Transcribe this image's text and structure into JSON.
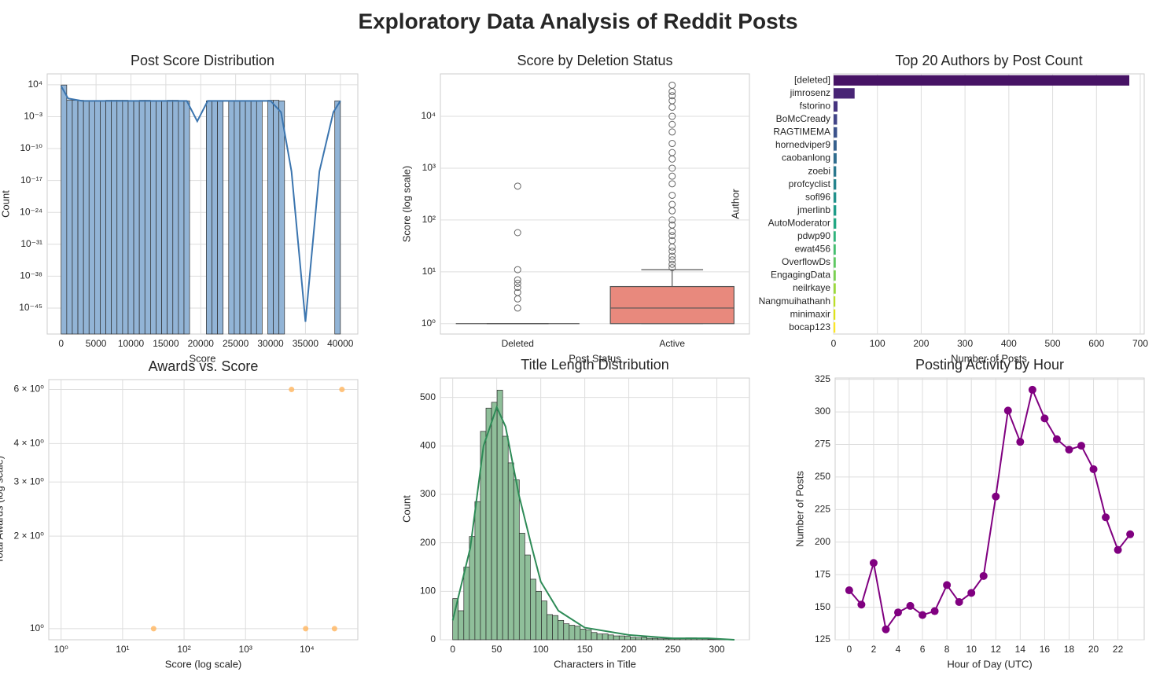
{
  "title": "Exploratory Data Analysis of Reddit Posts",
  "chart_data": [
    {
      "type": "histogram",
      "title": "Post Score Distribution",
      "xlabel": "Score",
      "ylabel": "Count",
      "ylog": true,
      "grid": true,
      "color": "#92b4d6",
      "edgecolor": "#2b2b2b",
      "bins": [
        0,
        800,
        1600,
        2400,
        3200,
        4000,
        4800,
        5600,
        6400,
        7200,
        8000,
        8800,
        9600,
        10400,
        11200,
        12000,
        12800,
        13600,
        14400,
        15200,
        16000,
        16800,
        17600,
        18400,
        19200,
        20000,
        20800,
        21600,
        22400,
        23200,
        24000,
        24800,
        25600,
        26400,
        27200,
        28000,
        28800,
        29600,
        30400,
        31200,
        32000,
        32800,
        33600,
        34400,
        35200,
        36000,
        36800,
        37600,
        38400,
        39200,
        40000
      ],
      "counts": [
        9000,
        4,
        4,
        4,
        3,
        3,
        3,
        3,
        4,
        4,
        4,
        4,
        3,
        3,
        4,
        4,
        3,
        3,
        3,
        4,
        4,
        3,
        3,
        0,
        0,
        0,
        3,
        3,
        3,
        0,
        3,
        3,
        3,
        3,
        3,
        3,
        0,
        4,
        4,
        3,
        0,
        0,
        0,
        0,
        0,
        0,
        0,
        0,
        0,
        3
      ],
      "kde": {
        "color": "#3b75af",
        "x": [
          0,
          1000,
          3000,
          6000,
          10000,
          15000,
          18000,
          19500,
          21000,
          25000,
          30000,
          31500,
          33000,
          35000,
          37000,
          39000,
          40000
        ],
        "y": [
          5000,
          10,
          3,
          3,
          3,
          3,
          3,
          0.0001,
          3,
          3,
          3,
          0.01,
          1e-15,
          1e-48,
          1e-15,
          0.01,
          3
        ]
      },
      "xlim": [
        -2000,
        42500
      ],
      "xticks": [
        0,
        5000,
        10000,
        15000,
        20000,
        25000,
        30000,
        35000,
        40000
      ],
      "ylim": [
        2e-51,
        2500000.0
      ],
      "yticks": [
        {
          "value": 10000.0,
          "label": "10⁴"
        },
        {
          "value": 0.001,
          "label": "10⁻³"
        },
        {
          "value": 1e-10,
          "label": "10⁻¹⁰"
        },
        {
          "value": 1e-17,
          "label": "10⁻¹⁷"
        },
        {
          "value": 1e-24,
          "label": "10⁻²⁴"
        },
        {
          "value": 1e-31,
          "label": "10⁻³¹"
        },
        {
          "value": 1e-38,
          "label": "10⁻³⁸"
        },
        {
          "value": 1e-45,
          "label": "10⁻⁴⁵"
        }
      ]
    },
    {
      "type": "box",
      "title": "Score by Deletion Status",
      "xlabel": "Post Status",
      "ylabel": "Score (log scale)",
      "ylog": true,
      "grid": true,
      "categories": [
        "Deleted",
        "Active"
      ],
      "boxes": [
        {
          "color": "#8db8d8",
          "whisker_low": 1,
          "q1": 1,
          "median": 1,
          "q3": 1,
          "whisker_high": 1,
          "outliers": [
            2,
            3,
            4,
            5,
            6,
            7,
            11,
            57,
            450
          ]
        },
        {
          "color": "#e8897d",
          "whisker_low": 1,
          "q1": 1,
          "median": 2,
          "q3": 5.2,
          "whisker_high": 11,
          "outliers": [
            12,
            14,
            17,
            20,
            25,
            30,
            40,
            50,
            60,
            80,
            100,
            150,
            200,
            300,
            500,
            700,
            1000,
            1500,
            2000,
            3000,
            5000,
            7000,
            10000,
            15000,
            20000,
            25000,
            30000,
            40000
          ]
        }
      ],
      "ylim": [
        0.63,
        66000
      ],
      "yticks": [
        {
          "value": 1,
          "label": "10⁰"
        },
        {
          "value": 10,
          "label": "10¹"
        },
        {
          "value": 100,
          "label": "10²"
        },
        {
          "value": 1000,
          "label": "10³"
        },
        {
          "value": 10000,
          "label": "10⁴"
        }
      ]
    },
    {
      "type": "bar",
      "orientation": "horizontal",
      "title": "Top 20 Authors by Post Count",
      "xlabel": "Number of Posts",
      "ylabel": "Author",
      "grid": true,
      "categories": [
        "[deleted]",
        "jimrosenz",
        "fstorino",
        "BoMcCready",
        "RAGTIMEMA",
        "hornedviper9",
        "caobanlong",
        "zoebi",
        "profcyclist",
        "sofl96",
        "jmerlinb",
        "AutoModerator",
        "pdwp90",
        "ewat456",
        "OverflowDs",
        "EngagingData",
        "neilrkaye",
        "Nangmuihathanh",
        "minimaxir",
        "bocap123"
      ],
      "values": [
        675,
        48,
        9,
        8,
        8,
        7,
        7,
        6,
        6,
        6,
        6,
        6,
        5,
        5,
        5,
        5,
        5,
        4,
        4,
        4
      ],
      "colors": [
        "#471365",
        "#482475",
        "#463480",
        "#414487",
        "#3b528b",
        "#355f8d",
        "#2f6c8e",
        "#2a788e",
        "#25848e",
        "#21918c",
        "#1e9c89",
        "#22a884",
        "#2fb47c",
        "#44bf70",
        "#5ec962",
        "#7ad151",
        "#9bd93c",
        "#bddf26",
        "#dfe318",
        "#fde725"
      ],
      "xlim": [
        0,
        709
      ],
      "xticks": [
        0,
        100,
        200,
        300,
        400,
        500,
        600,
        700
      ]
    },
    {
      "type": "scatter",
      "title": "Awards vs. Score",
      "xlabel": "Score (log scale)",
      "ylabel": "Total Awards (log scale)",
      "xlog": true,
      "ylog": true,
      "grid": true,
      "color": "#ffb866",
      "x": [
        32,
        9500,
        28000,
        5600,
        37000
      ],
      "values": [
        1,
        1,
        1,
        6,
        6
      ],
      "xlim": [
        0.63,
        67000
      ],
      "ylim": [
        0.92,
        6.46
      ],
      "xticks": [
        {
          "value": 1,
          "label": "10⁰"
        },
        {
          "value": 10,
          "label": "10¹"
        },
        {
          "value": 100,
          "label": "10²"
        },
        {
          "value": 1000,
          "label": "10³"
        },
        {
          "value": 10000,
          "label": "10⁴"
        }
      ],
      "yticks": [
        {
          "value": 1,
          "label": "10⁰"
        },
        {
          "value": 2,
          "label": "2 × 10⁰"
        },
        {
          "value": 3,
          "label": "3 × 10⁰"
        },
        {
          "value": 4,
          "label": "4 × 10⁰"
        },
        {
          "value": 6,
          "label": "6 × 10⁰"
        }
      ]
    },
    {
      "type": "histogram",
      "title": "Title Length Distribution",
      "xlabel": "Characters in Title",
      "ylabel": "Count",
      "grid": true,
      "color": "#8fbf9a",
      "edgecolor": "#2b2b2b",
      "bins": [
        0,
        6.3,
        12.6,
        18.9,
        25.2,
        31.5,
        37.8,
        44.1,
        50.4,
        56.7,
        63,
        69.3,
        75.6,
        81.9,
        88.2,
        94.5,
        100.8,
        107.1,
        113.4,
        119.7,
        126,
        132.3,
        138.6,
        144.9,
        151.2,
        157.5,
        163.8,
        170.1,
        176.4,
        182.7,
        189,
        195.3,
        201.6,
        207.9,
        214.2,
        220.5,
        226.8,
        233.1,
        239.4,
        245.7,
        252,
        258.3,
        264.6,
        270.9,
        277.2,
        283.5,
        289.8,
        296.1,
        302.4,
        308.7,
        315
      ],
      "counts": [
        85,
        60,
        150,
        213,
        285,
        430,
        478,
        490,
        515,
        420,
        365,
        330,
        220,
        175,
        125,
        100,
        80,
        52,
        50,
        40,
        33,
        30,
        28,
        22,
        20,
        15,
        12,
        12,
        10,
        8,
        8,
        7,
        5,
        4,
        5,
        3,
        3,
        2,
        2,
        2,
        2,
        3,
        4,
        4,
        3,
        2,
        1,
        1,
        1,
        1
      ],
      "kde": {
        "color": "#2e8b57",
        "x": [
          0,
          20,
          35,
          50,
          60,
          75,
          90,
          100,
          120,
          150,
          200,
          250,
          290,
          320
        ],
        "y": [
          40,
          190,
          400,
          480,
          440,
          300,
          190,
          120,
          60,
          25,
          10,
          3,
          3,
          0
        ]
      },
      "xlim": [
        -14,
        337
      ],
      "xticks": [
        0,
        50,
        100,
        150,
        200,
        250,
        300
      ],
      "ylim": [
        0,
        540
      ],
      "yticks": [
        0,
        100,
        200,
        300,
        400,
        500
      ]
    },
    {
      "type": "line",
      "title": "Posting Activity by Hour",
      "xlabel": "Hour of Day (UTC)",
      "ylabel": "Number of Posts",
      "grid": true,
      "color": "#800080",
      "x": [
        0,
        1,
        2,
        3,
        4,
        5,
        6,
        7,
        8,
        9,
        10,
        11,
        12,
        13,
        14,
        15,
        16,
        17,
        18,
        19,
        20,
        21,
        22,
        23
      ],
      "values": [
        163,
        152,
        184,
        133,
        146,
        151,
        144,
        147,
        167,
        154,
        161,
        174,
        235,
        301,
        277,
        317,
        295,
        279,
        271,
        274,
        256,
        219,
        194,
        206
      ],
      "xlim": [
        -1.15,
        24.15
      ],
      "xticks": [
        0,
        2,
        4,
        6,
        8,
        10,
        12,
        14,
        16,
        18,
        20,
        22
      ],
      "ylim": [
        125,
        326
      ],
      "yticks": [
        125,
        150,
        175,
        200,
        225,
        250,
        275,
        300,
        325
      ]
    }
  ]
}
